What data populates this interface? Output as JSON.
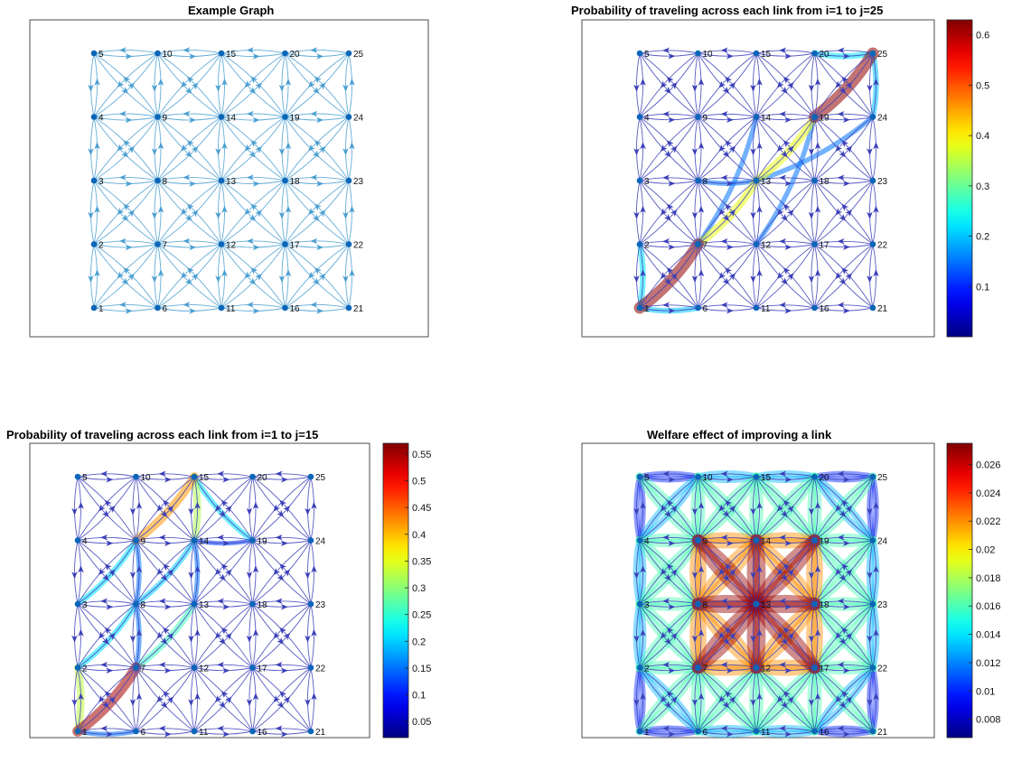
{
  "chart_data": [
    {
      "type": "graph",
      "title": "Example Graph",
      "nodes": [
        1,
        2,
        3,
        4,
        5,
        6,
        7,
        8,
        9,
        10,
        11,
        12,
        13,
        14,
        15,
        16,
        17,
        18,
        19,
        20,
        21,
        22,
        23,
        24,
        25
      ],
      "grid": {
        "columns": 5,
        "rows": 5
      },
      "edge_color": "#4a9fd1",
      "colorbar": null
    },
    {
      "type": "graph",
      "title": "Probability of traveling across each link from i=1 to j=25",
      "nodes": [
        1,
        2,
        3,
        4,
        5,
        6,
        7,
        8,
        9,
        10,
        11,
        12,
        13,
        14,
        15,
        16,
        17,
        18,
        19,
        20,
        21,
        22,
        23,
        24,
        25
      ],
      "grid": {
        "columns": 5,
        "rows": 5
      },
      "colormap": "jet",
      "highlighted_links": [
        {
          "from": 1,
          "to": 7,
          "value": 0.62
        },
        {
          "from": 7,
          "to": 13,
          "value": 0.38
        },
        {
          "from": 13,
          "to": 19,
          "value": 0.38
        },
        {
          "from": 19,
          "to": 25,
          "value": 0.62
        },
        {
          "from": 1,
          "to": 2,
          "value": 0.22
        },
        {
          "from": 1,
          "to": 6,
          "value": 0.2
        },
        {
          "from": 20,
          "to": 25,
          "value": 0.22
        },
        {
          "from": 24,
          "to": 25,
          "value": 0.2
        },
        {
          "from": 7,
          "to": 14,
          "value": 0.15
        },
        {
          "from": 8,
          "to": 13,
          "value": 0.15
        },
        {
          "from": 12,
          "to": 19,
          "value": 0.15
        },
        {
          "from": 13,
          "to": 24,
          "value": 0.15
        }
      ],
      "colorbar": {
        "min": 0.0,
        "max": 0.63,
        "ticks": [
          "0.1",
          "0.2",
          "0.3",
          "0.4",
          "0.5",
          "0.6"
        ],
        "tick_values": [
          0.1,
          0.2,
          0.3,
          0.4,
          0.5,
          0.6
        ]
      }
    },
    {
      "type": "graph",
      "title": "Probability of traveling across each link from i=1 to j=15",
      "nodes": [
        1,
        2,
        3,
        4,
        5,
        6,
        7,
        8,
        9,
        10,
        11,
        12,
        13,
        14,
        15,
        16,
        17,
        18,
        19,
        20,
        21,
        22,
        23,
        24,
        25
      ],
      "grid": {
        "columns": 5,
        "rows": 5
      },
      "colormap": "jet",
      "highlighted_links": [
        {
          "from": 1,
          "to": 7,
          "value": 0.55
        },
        {
          "from": 9,
          "to": 15,
          "value": 0.42
        },
        {
          "from": 1,
          "to": 2,
          "value": 0.33
        },
        {
          "from": 14,
          "to": 15,
          "value": 0.32
        },
        {
          "from": 7,
          "to": 13,
          "value": 0.26
        },
        {
          "from": 2,
          "to": 8,
          "value": 0.21
        },
        {
          "from": 3,
          "to": 9,
          "value": 0.21
        },
        {
          "from": 15,
          "to": 19,
          "value": 0.21
        },
        {
          "from": 8,
          "to": 14,
          "value": 0.2
        },
        {
          "from": 8,
          "to": 9,
          "value": 0.15
        },
        {
          "from": 7,
          "to": 8,
          "value": 0.15
        },
        {
          "from": 1,
          "to": 6,
          "value": 0.15
        },
        {
          "from": 13,
          "to": 14,
          "value": 0.15
        },
        {
          "from": 14,
          "to": 19,
          "value": 0.12
        }
      ],
      "colorbar": {
        "min": 0.02,
        "max": 0.57,
        "ticks": [
          "0.05",
          "0.1",
          "0.15",
          "0.2",
          "0.25",
          "0.3",
          "0.35",
          "0.4",
          "0.45",
          "0.5",
          "0.55"
        ],
        "tick_values": [
          0.05,
          0.1,
          0.15,
          0.2,
          0.25,
          0.3,
          0.35,
          0.4,
          0.45,
          0.5,
          0.55
        ]
      }
    },
    {
      "type": "graph",
      "title": "Welfare effect of improving a link",
      "nodes": [
        1,
        2,
        3,
        4,
        5,
        6,
        7,
        8,
        9,
        10,
        11,
        12,
        13,
        14,
        15,
        16,
        17,
        18,
        19,
        20,
        21,
        22,
        23,
        24,
        25
      ],
      "grid": {
        "columns": 5,
        "rows": 5
      },
      "colormap": "jet",
      "level_by_link_type": {
        "center_incident": 0.027,
        "inner_ring": 0.022,
        "inner_to_outer": 0.016,
        "outer_middle": 0.013,
        "corner": 0.01
      },
      "colorbar": {
        "min": 0.0067,
        "max": 0.0275,
        "ticks": [
          "0.008",
          "0.01",
          "0.012",
          "0.014",
          "0.016",
          "0.018",
          "0.02",
          "0.022",
          "0.024",
          "0.026"
        ],
        "tick_values": [
          0.008,
          0.01,
          0.012,
          0.014,
          0.016,
          0.018,
          0.02,
          0.022,
          0.024,
          0.026
        ]
      }
    }
  ]
}
